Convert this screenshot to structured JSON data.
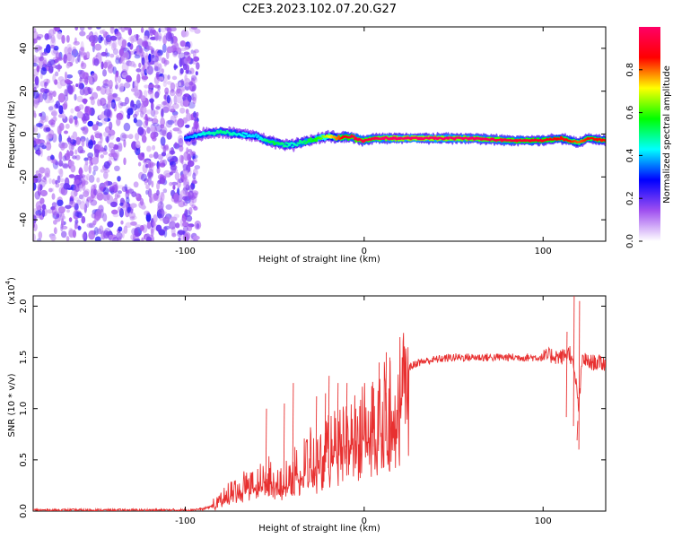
{
  "title": "C2E3.2023.102.07.20.G27",
  "chart_data": [
    {
      "type": "heatmap",
      "xlabel": "Height of straight line (km)",
      "ylabel": "Frequency (Hz)",
      "xlim": [
        -185,
        135
      ],
      "ylim": [
        -50,
        50
      ],
      "x_ticks": [
        -100,
        0,
        100
      ],
      "y_ticks": [
        -40,
        -20,
        0,
        20,
        40
      ],
      "noise_region_x": [
        -185,
        -93
      ],
      "ridge": {
        "x": [
          -100,
          -90,
          -80,
          -70,
          -60,
          -55,
          -50,
          -45,
          -40,
          -35,
          -30,
          -25,
          -20,
          -15,
          -10,
          -5,
          0,
          5,
          10,
          20,
          40,
          60,
          80,
          100,
          110,
          115,
          120,
          125,
          135
        ],
        "freq": [
          -2,
          0,
          1,
          0,
          -1,
          -3,
          -4,
          -5,
          -5,
          -4,
          -3,
          -2,
          -1,
          -2,
          -1,
          -2,
          -3,
          -2,
          -2,
          -2,
          -2,
          -2,
          -3,
          -3,
          -2,
          -3,
          -4,
          -2,
          -3
        ],
        "amplitude": [
          0.3,
          0.4,
          0.45,
          0.4,
          0.35,
          0.45,
          0.5,
          0.45,
          0.4,
          0.45,
          0.5,
          0.55,
          0.65,
          0.75,
          0.85,
          0.9,
          0.9,
          0.9,
          0.95,
          1.0,
          1.0,
          0.95,
          0.9,
          0.85,
          0.8,
          0.8,
          0.75,
          0.8,
          0.8
        ]
      },
      "colorbar": {
        "label": "Normalized spectral amplitude",
        "range": [
          0.0,
          1.0
        ],
        "ticks": [
          "0.0",
          "0.2",
          "0.4",
          "0.6",
          "0.8"
        ],
        "colors": [
          "#ffffff",
          "#a050f0",
          "#0000ff",
          "#00ffff",
          "#00ff00",
          "#ffff00",
          "#ff0000",
          "#ff0066"
        ]
      }
    },
    {
      "type": "line",
      "xlabel": "Height of straight line (km)",
      "ylabel": "SNR (10 * v/v)",
      "y_multiplier_label": "(x10",
      "y_multiplier_exp": "4",
      "xlim": [
        -185,
        135
      ],
      "ylim": [
        0.0,
        2.1
      ],
      "x_ticks": [
        -100,
        0,
        100
      ],
      "y_ticks": [
        "0.0",
        "0.5",
        "1.0",
        "1.5",
        "2.0"
      ],
      "color": "#e83030",
      "series": [
        {
          "x": [
            -185,
            -150,
            -100,
            -90,
            -85,
            -80,
            -75,
            -70,
            -65,
            -60,
            -55,
            -50,
            -45,
            -40,
            -35,
            -30,
            -25,
            -20,
            -15,
            -10,
            -5,
            0,
            5,
            10,
            15,
            20,
            25,
            30,
            40,
            50,
            60,
            70,
            80,
            90,
            100,
            105,
            110,
            115,
            118,
            120,
            122,
            125,
            130,
            135
          ],
          "y": [
            0.01,
            0.01,
            0.01,
            0.02,
            0.05,
            0.12,
            0.2,
            0.25,
            0.3,
            0.28,
            0.4,
            0.35,
            0.3,
            0.45,
            0.5,
            0.6,
            0.55,
            0.7,
            0.75,
            0.85,
            0.9,
            1.0,
            1.05,
            1.1,
            1.2,
            1.3,
            1.4,
            1.45,
            1.48,
            1.5,
            1.5,
            1.5,
            1.5,
            1.5,
            1.5,
            1.52,
            1.5,
            1.55,
            1.3,
            1.0,
            1.5,
            1.45,
            1.45,
            1.44
          ]
        }
      ],
      "spikes": [
        {
          "x": -55,
          "y": 1.0
        },
        {
          "x": -45,
          "y": 1.05
        },
        {
          "x": -40,
          "y": 1.25
        },
        {
          "x": -27,
          "y": 1.12
        },
        {
          "x": -22,
          "y": 1.15
        },
        {
          "x": -20,
          "y": 1.32
        },
        {
          "x": -15,
          "y": 1.25
        },
        {
          "x": -10,
          "y": 1.25
        },
        {
          "x": -5,
          "y": 1.0
        },
        {
          "x": 5,
          "y": 1.2
        },
        {
          "x": 8,
          "y": 1.45
        },
        {
          "x": 12,
          "y": 1.55
        },
        {
          "x": 14,
          "y": 1.5
        },
        {
          "x": 113,
          "y": 1.75
        },
        {
          "x": 117,
          "y": 2.15
        },
        {
          "x": 119,
          "y": 0.88
        },
        {
          "x": 120,
          "y": 2.05
        }
      ]
    }
  ]
}
